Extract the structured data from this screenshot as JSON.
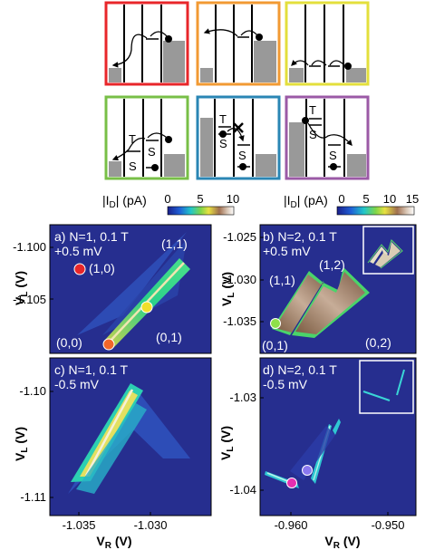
{
  "schematics": [
    {
      "id": "red",
      "color": "#e8262a"
    },
    {
      "id": "orange",
      "color": "#f29a33"
    },
    {
      "id": "yellow",
      "color": "#e3df3c"
    },
    {
      "id": "green",
      "color": "#78bf47",
      "labels": [
        "T",
        "S",
        "S"
      ]
    },
    {
      "id": "blue",
      "color": "#2a86b4",
      "labels": [
        "T",
        "S",
        "S"
      ]
    },
    {
      "id": "purple",
      "color": "#9b5aa6",
      "labels": [
        "T",
        "S",
        "S"
      ]
    }
  ],
  "colorbars": [
    {
      "label_I": "|I",
      "label_sub": "D",
      "label_unit": "| (pA)",
      "ticks": [
        "0",
        "5",
        "10"
      ],
      "range": [
        0,
        10
      ]
    },
    {
      "label_I": "|I",
      "label_sub": "D",
      "label_unit": "| (pA)",
      "ticks": [
        "0",
        "5",
        "10",
        "15"
      ],
      "range": [
        0,
        15
      ]
    }
  ],
  "chart_data": [
    {
      "type": "heatmap",
      "panel": "a)",
      "title_line1": "a) N=1, 0.1 T",
      "title_line2": "+0.5 mV",
      "ylabel_main": "V",
      "ylabel_sub": "L",
      "ylabel_unit": " (V)",
      "yticks": [
        "-1.100",
        "-1.105"
      ],
      "region_labels": [
        "(1,1)",
        "(1,0)",
        "(0,0)",
        "(0,1)"
      ],
      "markers": [
        {
          "color": "#e8262a",
          "vr": -1.0345,
          "vl": -1.1002
        },
        {
          "color": "#f1df2a",
          "vr": -1.0302,
          "vl": -1.1037
        },
        {
          "color": "#f0662a",
          "vr": -1.0325,
          "vl": -1.1066
        }
      ]
    },
    {
      "type": "heatmap",
      "panel": "b)",
      "title_line1": "b) N=2, 0.1 T",
      "title_line2": "+0.5 mV",
      "ylabel_main": "V",
      "ylabel_sub": "L",
      "ylabel_unit": " (V)",
      "yticks": [
        "-1.025",
        "-1.030",
        "-1.035"
      ],
      "region_labels": [
        "(1,2)",
        "(1,1)",
        "(0,1)",
        "(0,2)"
      ],
      "markers": [
        {
          "color": "#8ee04a",
          "vr": -0.9595,
          "vl": -1.0329
        }
      ],
      "inset": true
    },
    {
      "type": "heatmap",
      "panel": "c)",
      "title_line1": "c) N=1, 0.1 T",
      "title_line2": "-0.5 mV",
      "ylabel_main": "V",
      "ylabel_sub": "L",
      "ylabel_unit": " (V)",
      "xlabel_main": "V",
      "xlabel_sub": "R",
      "xlabel_unit": " (V)",
      "yticks": [
        "-1.10",
        "-1.11"
      ],
      "xticks": [
        "-1.035",
        "-1.030"
      ],
      "xlim": [
        -1.037,
        -1.026
      ]
    },
    {
      "type": "heatmap",
      "panel": "d)",
      "title_line1": "d) N=2, 0.1 T",
      "title_line2": "-0.5 mV",
      "ylabel_main": "V",
      "ylabel_sub": "L",
      "ylabel_unit": " (V)",
      "xlabel_main": "V",
      "xlabel_sub": "R",
      "xlabel_unit": " (V)",
      "yticks": [
        "-1.03",
        "-1.04"
      ],
      "xticks": [
        "-0.960",
        "-0.950"
      ],
      "xlim": [
        -0.962,
        -0.947
      ],
      "markers": [
        {
          "color": "#8a78f0",
          "vr": -0.9589,
          "vl": -1.0385
        },
        {
          "color": "#e52fb0",
          "vr": -0.9601,
          "vl": -1.0391
        }
      ],
      "inset": true
    }
  ]
}
